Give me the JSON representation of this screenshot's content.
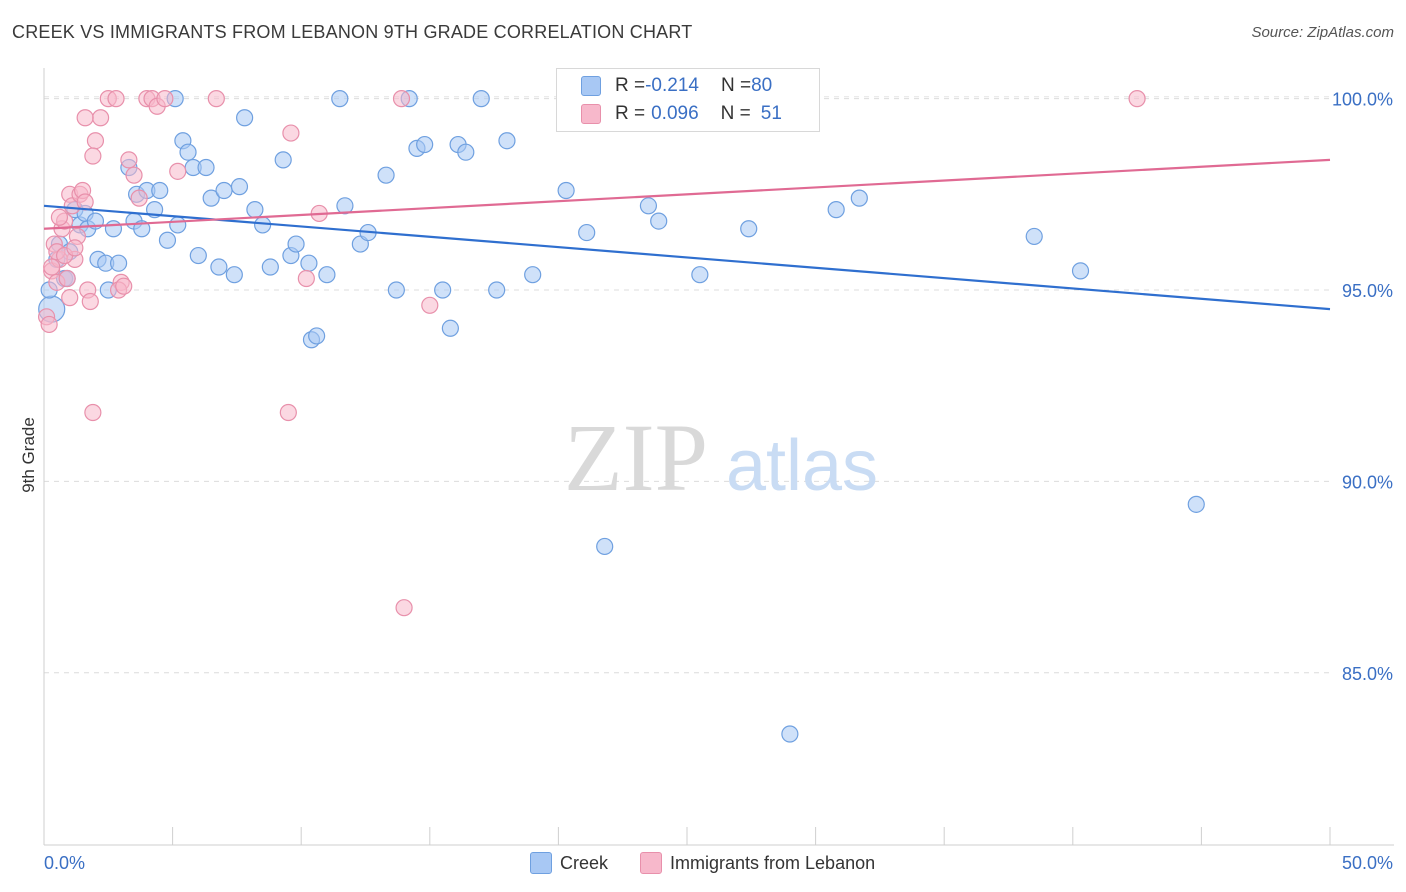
{
  "title": "CREEK VS IMMIGRANTS FROM LEBANON 9TH GRADE CORRELATION CHART",
  "source": "Source: ZipAtlas.com",
  "watermark": {
    "part1": "ZIP",
    "part2": "atlas"
  },
  "stats_legend": [
    {
      "r_label": "R = ",
      "r_value": "-0.214",
      "n_label": "N = ",
      "n_value": "80",
      "color": "#a8c8f4"
    },
    {
      "r_label": "R = ",
      "r_value": "0.096",
      "n_label": "N = ",
      "n_value": "51",
      "color": "#f7b8cb"
    }
  ],
  "legend": [
    {
      "label": "Creek",
      "color": "#a8c8f4"
    },
    {
      "label": "Immigrants from Lebanon",
      "color": "#f7b8cb"
    }
  ],
  "chart_data": {
    "type": "scatter",
    "title": "CREEK VS IMMIGRANTS FROM LEBANON 9TH GRADE CORRELATION CHART",
    "xlabel": "",
    "ylabel": "9th Grade",
    "xlim": [
      0,
      50
    ],
    "ylim": [
      80.5,
      100.8
    ],
    "x_tick_labels": [
      "0.0%",
      "50.0%"
    ],
    "y_ticks": [
      85,
      90,
      95,
      100
    ],
    "y_tick_labels": [
      "85.0%",
      "90.0%",
      "95.0%",
      "100.0%"
    ],
    "grid": true,
    "legend_position": "bottom",
    "series": [
      {
        "name": "Creek",
        "color": "#6fa0e0",
        "fill": "#a8c8f4",
        "trend": {
          "x": [
            0,
            50
          ],
          "y": [
            97.2,
            94.5
          ],
          "color": "#2f6fcf"
        },
        "points": [
          [
            0.3,
            94.5
          ],
          [
            0.5,
            95.8
          ],
          [
            0.6,
            96.2
          ],
          [
            0.8,
            95.3
          ],
          [
            1.0,
            96.0
          ],
          [
            1.2,
            97.1
          ],
          [
            1.4,
            96.7
          ],
          [
            1.6,
            97.0
          ],
          [
            1.7,
            96.6
          ],
          [
            2.0,
            96.8
          ],
          [
            2.1,
            95.8
          ],
          [
            2.4,
            95.7
          ],
          [
            2.5,
            95.0
          ],
          [
            2.7,
            96.6
          ],
          [
            3.3,
            98.2
          ],
          [
            3.5,
            96.8
          ],
          [
            3.6,
            97.5
          ],
          [
            3.8,
            96.6
          ],
          [
            4.0,
            97.6
          ],
          [
            4.3,
            97.1
          ],
          [
            4.5,
            97.6
          ],
          [
            4.8,
            96.3
          ],
          [
            5.2,
            96.7
          ],
          [
            5.4,
            98.9
          ],
          [
            5.6,
            98.6
          ],
          [
            5.8,
            98.2
          ],
          [
            6.0,
            95.9
          ],
          [
            6.3,
            98.2
          ],
          [
            6.5,
            97.4
          ],
          [
            6.8,
            95.6
          ],
          [
            7.0,
            97.6
          ],
          [
            7.4,
            95.4
          ],
          [
            7.6,
            97.7
          ],
          [
            7.8,
            99.5
          ],
          [
            8.2,
            97.1
          ],
          [
            8.8,
            95.6
          ],
          [
            8.5,
            96.7
          ],
          [
            9.3,
            98.4
          ],
          [
            9.6,
            95.9
          ],
          [
            9.8,
            96.2
          ],
          [
            10.3,
            95.7
          ],
          [
            10.4,
            93.7
          ],
          [
            10.6,
            93.8
          ],
          [
            11.0,
            95.4
          ],
          [
            11.7,
            97.2
          ],
          [
            12.3,
            96.2
          ],
          [
            12.6,
            96.5
          ],
          [
            13.7,
            95.0
          ],
          [
            14.5,
            98.7
          ],
          [
            14.8,
            98.8
          ],
          [
            15.5,
            95.0
          ],
          [
            15.8,
            94.0
          ],
          [
            16.1,
            98.8
          ],
          [
            16.4,
            98.6
          ],
          [
            17.0,
            100.0
          ],
          [
            17.6,
            95.0
          ],
          [
            18.0,
            98.9
          ],
          [
            19.0,
            95.4
          ],
          [
            20.3,
            97.6
          ],
          [
            21.1,
            96.5
          ],
          [
            21.8,
            88.3
          ],
          [
            23.0,
            100.0
          ],
          [
            23.5,
            97.2
          ],
          [
            23.9,
            96.8
          ],
          [
            25.5,
            95.4
          ],
          [
            27.4,
            96.6
          ],
          [
            29.0,
            83.4
          ],
          [
            30.8,
            97.1
          ],
          [
            31.7,
            97.4
          ],
          [
            38.5,
            96.4
          ],
          [
            40.3,
            95.5
          ],
          [
            44.8,
            89.4
          ],
          [
            5.1,
            100.0
          ],
          [
            11.5,
            100.0
          ],
          [
            14.2,
            100.0
          ],
          [
            22.5,
            100.0
          ],
          [
            0.2,
            95.0
          ],
          [
            0.9,
            95.3
          ],
          [
            13.3,
            98.0
          ],
          [
            2.9,
            95.7
          ]
        ]
      },
      {
        "name": "Immigrants from Lebanon",
        "color": "#e890ab",
        "fill": "#f7b8cb",
        "trend": {
          "x": [
            0,
            50
          ],
          "y": [
            96.6,
            98.4
          ],
          "color": "#e06a93"
        },
        "points": [
          [
            0.1,
            94.3
          ],
          [
            0.2,
            94.1
          ],
          [
            0.3,
            95.5
          ],
          [
            0.4,
            96.2
          ],
          [
            0.5,
            95.2
          ],
          [
            0.6,
            95.8
          ],
          [
            0.7,
            96.6
          ],
          [
            0.8,
            96.8
          ],
          [
            0.9,
            95.3
          ],
          [
            1.0,
            97.5
          ],
          [
            1.1,
            97.2
          ],
          [
            1.2,
            95.8
          ],
          [
            1.3,
            96.4
          ],
          [
            1.4,
            97.5
          ],
          [
            1.5,
            97.6
          ],
          [
            1.6,
            97.3
          ],
          [
            1.7,
            95.0
          ],
          [
            1.8,
            94.7
          ],
          [
            2.0,
            98.9
          ],
          [
            2.2,
            99.5
          ],
          [
            2.5,
            100.0
          ],
          [
            2.8,
            100.0
          ],
          [
            3.0,
            95.2
          ],
          [
            3.3,
            98.4
          ],
          [
            3.5,
            98.0
          ],
          [
            3.7,
            97.4
          ],
          [
            4.0,
            100.0
          ],
          [
            4.2,
            100.0
          ],
          [
            4.4,
            99.8
          ],
          [
            5.2,
            98.1
          ],
          [
            6.7,
            100.0
          ],
          [
            9.6,
            99.1
          ],
          [
            10.2,
            95.3
          ],
          [
            10.7,
            97.0
          ],
          [
            13.9,
            100.0
          ],
          [
            14.0,
            86.7
          ],
          [
            15.0,
            94.6
          ],
          [
            1.9,
            91.8
          ],
          [
            9.5,
            91.8
          ],
          [
            42.5,
            100.0
          ],
          [
            1.6,
            99.5
          ],
          [
            1.9,
            98.5
          ],
          [
            0.5,
            96.0
          ],
          [
            1.0,
            94.8
          ],
          [
            2.9,
            95.0
          ],
          [
            0.8,
            95.9
          ],
          [
            1.2,
            96.1
          ],
          [
            4.7,
            100.0
          ],
          [
            3.1,
            95.1
          ],
          [
            0.3,
            95.6
          ],
          [
            0.6,
            96.9
          ]
        ]
      }
    ]
  }
}
